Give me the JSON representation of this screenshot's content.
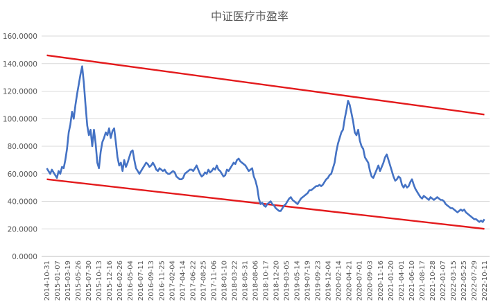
{
  "chart_data": {
    "type": "line",
    "title": "中证医疗市盈率",
    "xlabel": "",
    "ylabel": "",
    "ylim": [
      0,
      160
    ],
    "yticks": [
      "0.0000",
      "20.0000",
      "40.0000",
      "60.0000",
      "80.0000",
      "100.0000",
      "120.0000",
      "140.0000",
      "160.0000"
    ],
    "grid": true,
    "legend": "none",
    "xticks": [
      "2014-10-31",
      "2015-01-07",
      "2015-03-19",
      "2015-05-26",
      "2015-07-30",
      "2015-10-13",
      "2015-12-16",
      "2016-02-26",
      "2016-05-04",
      "2016-07-11",
      "2016-09-13",
      "2016-11-25",
      "2017-02-04",
      "2017-04-14",
      "2017-06-22",
      "2017-08-25",
      "2017-11-06",
      "2018-01-10",
      "2018-03-22",
      "2018-05-31",
      "2018-08-06",
      "2018-10-17",
      "2018-12-20",
      "2019-03-05",
      "2019-05-14",
      "2019-07-19",
      "2019-09-23",
      "2019-12-04",
      "2020-02-14",
      "2020-04-21",
      "2020-07-01",
      "2020-09-03",
      "2020-11-16",
      "2021-01-20",
      "2021-04-01",
      "2021-06-10",
      "2021-08-17",
      "2021-10-28",
      "2022-01-07",
      "2022-03-15",
      "2022-05-25",
      "2022-07-29",
      "2022-10-11"
    ],
    "series": [
      {
        "color": "#4472c4",
        "values": [
          64,
          62,
          60,
          63,
          61,
          59,
          57,
          62,
          60,
          65,
          64,
          70,
          78,
          90,
          96,
          105,
          100,
          110,
          118,
          125,
          132,
          138,
          126,
          110,
          95,
          88,
          92,
          80,
          92,
          82,
          68,
          64,
          76,
          83,
          86,
          90,
          88,
          93,
          86,
          91,
          93,
          83,
          72,
          66,
          68,
          62,
          70,
          65,
          68,
          72,
          76,
          77,
          70,
          64,
          62,
          60,
          62,
          64,
          66,
          68,
          67,
          65,
          66,
          68,
          66,
          63,
          62,
          64,
          63,
          62,
          63,
          61,
          60,
          60,
          61,
          62,
          61,
          58,
          57,
          56,
          56,
          57,
          60,
          61,
          62,
          63,
          63,
          62,
          64,
          66,
          63,
          60,
          58,
          59,
          61,
          60,
          63,
          61,
          62,
          64,
          63,
          66,
          63,
          62,
          60,
          58,
          59,
          63,
          62,
          64,
          66,
          68,
          67,
          70,
          71,
          69,
          68,
          67,
          66,
          64,
          62,
          63,
          64,
          58,
          55,
          50,
          42,
          38,
          39,
          37,
          36,
          38,
          39,
          40,
          38,
          37,
          35,
          34,
          33,
          33,
          35,
          37,
          38,
          40,
          42,
          43,
          41,
          40,
          39,
          38,
          40,
          42,
          43,
          44,
          45,
          46,
          48,
          48,
          49,
          50,
          51,
          51,
          52,
          51,
          52,
          54,
          56,
          57,
          59,
          60,
          64,
          68,
          76,
          82,
          86,
          90,
          92,
          100,
          106,
          113,
          110,
          104,
          98,
          90,
          88,
          92,
          84,
          80,
          78,
          72,
          70,
          68,
          62,
          58,
          57,
          60,
          63,
          66,
          62,
          65,
          68,
          72,
          74,
          70,
          66,
          62,
          58,
          55,
          56,
          58,
          57,
          52,
          50,
          52,
          50,
          51,
          54,
          56,
          52,
          49,
          47,
          45,
          43,
          42,
          44,
          43,
          42,
          41,
          43,
          42,
          41,
          42,
          43,
          42,
          41,
          41,
          40,
          38,
          37,
          36,
          35,
          35,
          34,
          33,
          32,
          33,
          34,
          33,
          34,
          32,
          31,
          30,
          29,
          28,
          27,
          27,
          26,
          25,
          26,
          25,
          27
        ]
      }
    ],
    "trend_lines": [
      {
        "color": "#e31a1c",
        "from": {
          "x": "2014-10-31",
          "y": 146
        },
        "to": {
          "x": "2022-10-11",
          "y": 103
        }
      },
      {
        "color": "#e31a1c",
        "from": {
          "x": "2014-10-31",
          "y": 56
        },
        "to": {
          "x": "2022-10-11",
          "y": 20
        }
      }
    ]
  }
}
